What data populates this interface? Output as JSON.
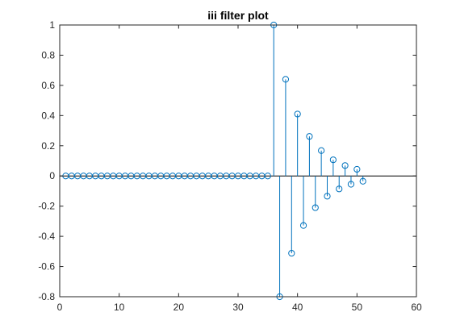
{
  "chart_data": {
    "type": "stem",
    "title": "iii filter plot",
    "xlabel": "",
    "ylabel": "",
    "xlim": [
      0,
      60
    ],
    "ylim": [
      -0.8,
      1
    ],
    "xticks": [
      0,
      10,
      20,
      30,
      40,
      50,
      60
    ],
    "yticks": [
      -0.8,
      -0.6,
      -0.4,
      -0.2,
      0,
      0.2,
      0.4,
      0.6,
      0.8,
      1
    ],
    "xtick_labels": [
      "0",
      "10",
      "20",
      "30",
      "40",
      "50",
      "60"
    ],
    "ytick_labels": [
      "-0.8",
      "-0.6",
      "-0.4",
      "-0.2",
      "0",
      "0.2",
      "0.4",
      "0.6",
      "0.8",
      "1"
    ],
    "grid": false,
    "series": [
      {
        "color": "#0072BD",
        "x": [
          1,
          2,
          3,
          4,
          5,
          6,
          7,
          8,
          9,
          10,
          11,
          12,
          13,
          14,
          15,
          16,
          17,
          18,
          19,
          20,
          21,
          22,
          23,
          24,
          25,
          26,
          27,
          28,
          29,
          30,
          31,
          32,
          33,
          34,
          35,
          36,
          37,
          38,
          39,
          40,
          41,
          42,
          43,
          44,
          45,
          46,
          47,
          48,
          49,
          50,
          51
        ],
        "values": [
          0,
          0,
          0,
          0,
          0,
          0,
          0,
          0,
          0,
          0,
          0,
          0,
          0,
          0,
          0,
          0,
          0,
          0,
          0,
          0,
          0,
          0,
          0,
          0,
          0,
          0,
          0,
          0,
          0,
          0,
          0,
          0,
          0,
          0,
          0,
          1,
          -0.8,
          0.64,
          -0.512,
          0.41,
          -0.328,
          0.262,
          -0.21,
          0.168,
          -0.134,
          0.107,
          -0.086,
          0.069,
          -0.055,
          0.044,
          -0.035
        ]
      }
    ]
  }
}
